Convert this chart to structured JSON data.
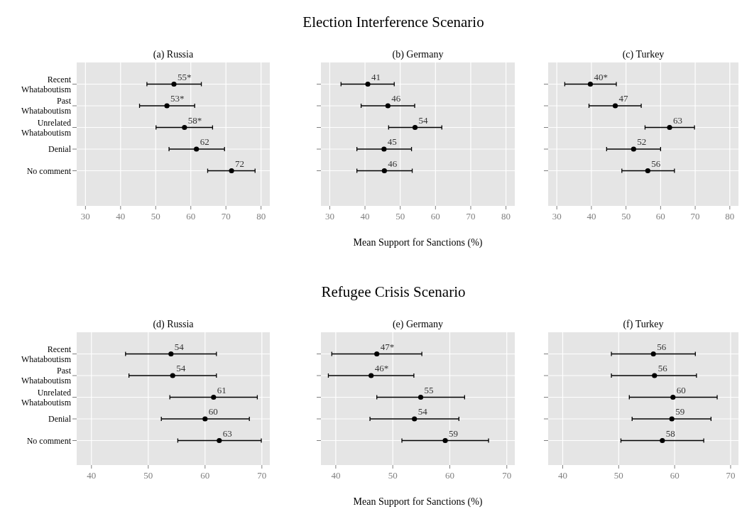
{
  "chart_data": [
    {
      "type": "scatter",
      "orientation": "horizontal",
      "title": "(a) Russia",
      "annotations": [
        "Election Interference Scenario"
      ],
      "categories": [
        "Recent\nWhataboutism",
        "Past\nWhataboutism",
        "Unrelated\nWhataboutism",
        "Denial",
        "No comment"
      ],
      "values": [
        55.2,
        53.2,
        58.2,
        61.6,
        71.6
      ],
      "errors": [
        [
          47.5,
          63.0
        ],
        [
          45.4,
          61.1
        ],
        [
          50.1,
          66.2
        ],
        [
          53.8,
          69.6
        ],
        [
          64.8,
          78.3
        ]
      ],
      "value_labels": [
        "55*",
        "53*",
        "58*",
        "62",
        "72"
      ],
      "color": "#000000",
      "marker": "circle",
      "xlim": [
        27.5,
        82.5
      ],
      "xticks": [
        30,
        40,
        50,
        60,
        70,
        80
      ],
      "grid": true
    },
    {
      "type": "scatter",
      "orientation": "horizontal",
      "title": "(b) Germany",
      "xlabel": "Mean Support for Sanctions (%)",
      "categories": [
        null,
        null,
        null,
        null,
        null
      ],
      "values": [
        40.8,
        46.5,
        54.2,
        45.4,
        45.5
      ],
      "errors": [
        [
          33.2,
          48.3
        ],
        [
          38.9,
          54.1
        ],
        [
          46.7,
          61.8
        ],
        [
          37.7,
          53.2
        ],
        [
          37.7,
          53.4
        ]
      ],
      "value_labels": [
        "41",
        "46",
        "54",
        "45",
        "46"
      ],
      "color": "#000000",
      "marker": "circle",
      "xlim": [
        27.5,
        82.5
      ],
      "xticks": [
        30,
        40,
        50,
        60,
        70,
        80
      ],
      "grid": true,
      "tick_labels": "x"
    },
    {
      "type": "scatter",
      "orientation": "horizontal",
      "title": "(c) Turkey",
      "categories": [
        null,
        null,
        null,
        null,
        null
      ],
      "values": [
        39.7,
        46.9,
        62.6,
        52.2,
        56.3
      ],
      "errors": [
        [
          32.3,
          47.2
        ],
        [
          39.3,
          54.4
        ],
        [
          55.5,
          69.8
        ],
        [
          44.4,
          60.0
        ],
        [
          48.8,
          64.0
        ]
      ],
      "value_labels": [
        "40*",
        "47",
        "63",
        "52",
        "56"
      ],
      "color": "#000000",
      "marker": "circle",
      "xlim": [
        27.5,
        82.5
      ],
      "xticks": [
        30,
        40,
        50,
        60,
        70,
        80
      ],
      "grid": true,
      "tick_labels": "x"
    },
    {
      "type": "scatter",
      "orientation": "horizontal",
      "title": "(d) Russia",
      "annotations": [
        "Refugee Crisis Scenario"
      ],
      "categories": [
        "Recent\nWhataboutism",
        "Past\nWhataboutism",
        "Unrelated\nWhataboutism",
        "Denial",
        "No comment"
      ],
      "values": [
        54.0,
        54.3,
        61.5,
        60.0,
        62.5
      ],
      "errors": [
        [
          46.0,
          62.0
        ],
        [
          46.6,
          62.0
        ],
        [
          53.8,
          69.2
        ],
        [
          52.3,
          67.8
        ],
        [
          55.2,
          69.9
        ]
      ],
      "value_labels": [
        "54",
        "54",
        "61",
        "60",
        "63"
      ],
      "color": "#000000",
      "marker": "circle",
      "xlim": [
        37.4,
        71.4
      ],
      "xticks": [
        40,
        50,
        60,
        70
      ],
      "grid": true
    },
    {
      "type": "scatter",
      "orientation": "horizontal",
      "title": "(e) Germany",
      "xlabel": "Mean Support for Sanctions (%)",
      "categories": [
        null,
        null,
        null,
        null,
        null
      ],
      "values": [
        47.2,
        46.2,
        54.9,
        53.8,
        59.2
      ],
      "errors": [
        [
          39.3,
          55.1
        ],
        [
          38.7,
          53.7
        ],
        [
          47.2,
          62.6
        ],
        [
          46.0,
          61.6
        ],
        [
          51.6,
          66.8
        ]
      ],
      "value_labels": [
        "47*",
        "46*",
        "55",
        "54",
        "59"
      ],
      "color": "#000000",
      "marker": "circle",
      "xlim": [
        37.4,
        71.4
      ],
      "xticks": [
        40,
        50,
        60,
        70
      ],
      "grid": true,
      "tick_labels": "x"
    },
    {
      "type": "scatter",
      "orientation": "horizontal",
      "title": "(f) Turkey",
      "categories": [
        null,
        null,
        null,
        null,
        null
      ],
      "values": [
        56.2,
        56.4,
        59.7,
        59.5,
        57.8
      ],
      "errors": [
        [
          48.7,
          63.7
        ],
        [
          48.7,
          63.9
        ],
        [
          51.9,
          67.6
        ],
        [
          52.4,
          66.5
        ],
        [
          50.4,
          65.2
        ]
      ],
      "value_labels": [
        "56",
        "56",
        "60",
        "59",
        "58"
      ],
      "color": "#000000",
      "marker": "circle",
      "xlim": [
        37.4,
        71.4
      ],
      "xticks": [
        40,
        50,
        60,
        70
      ],
      "grid": true,
      "tick_labels": "x"
    }
  ]
}
